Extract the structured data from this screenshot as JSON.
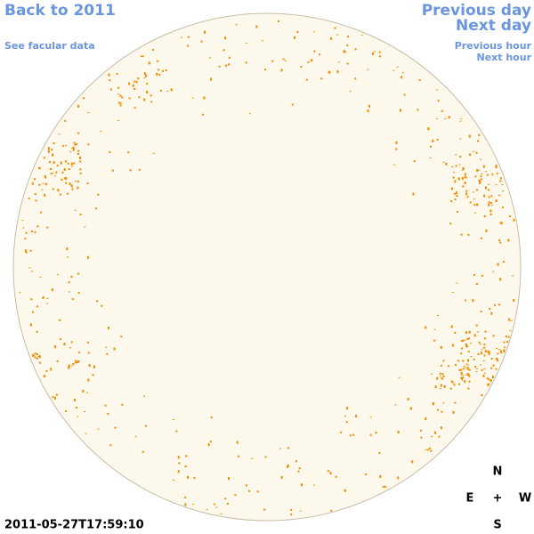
{
  "links": {
    "back": "Back to 2011",
    "facular": "See facular data",
    "previous_day": "Previous day",
    "next_day": "Next day",
    "previous_hour": "Previous hour",
    "next_hour": "Next hour"
  },
  "compass": {
    "north": "N",
    "east": "E",
    "center": "+",
    "west": "W",
    "south": "S"
  },
  "timestamp": "2011-05-27T17:59:10"
}
